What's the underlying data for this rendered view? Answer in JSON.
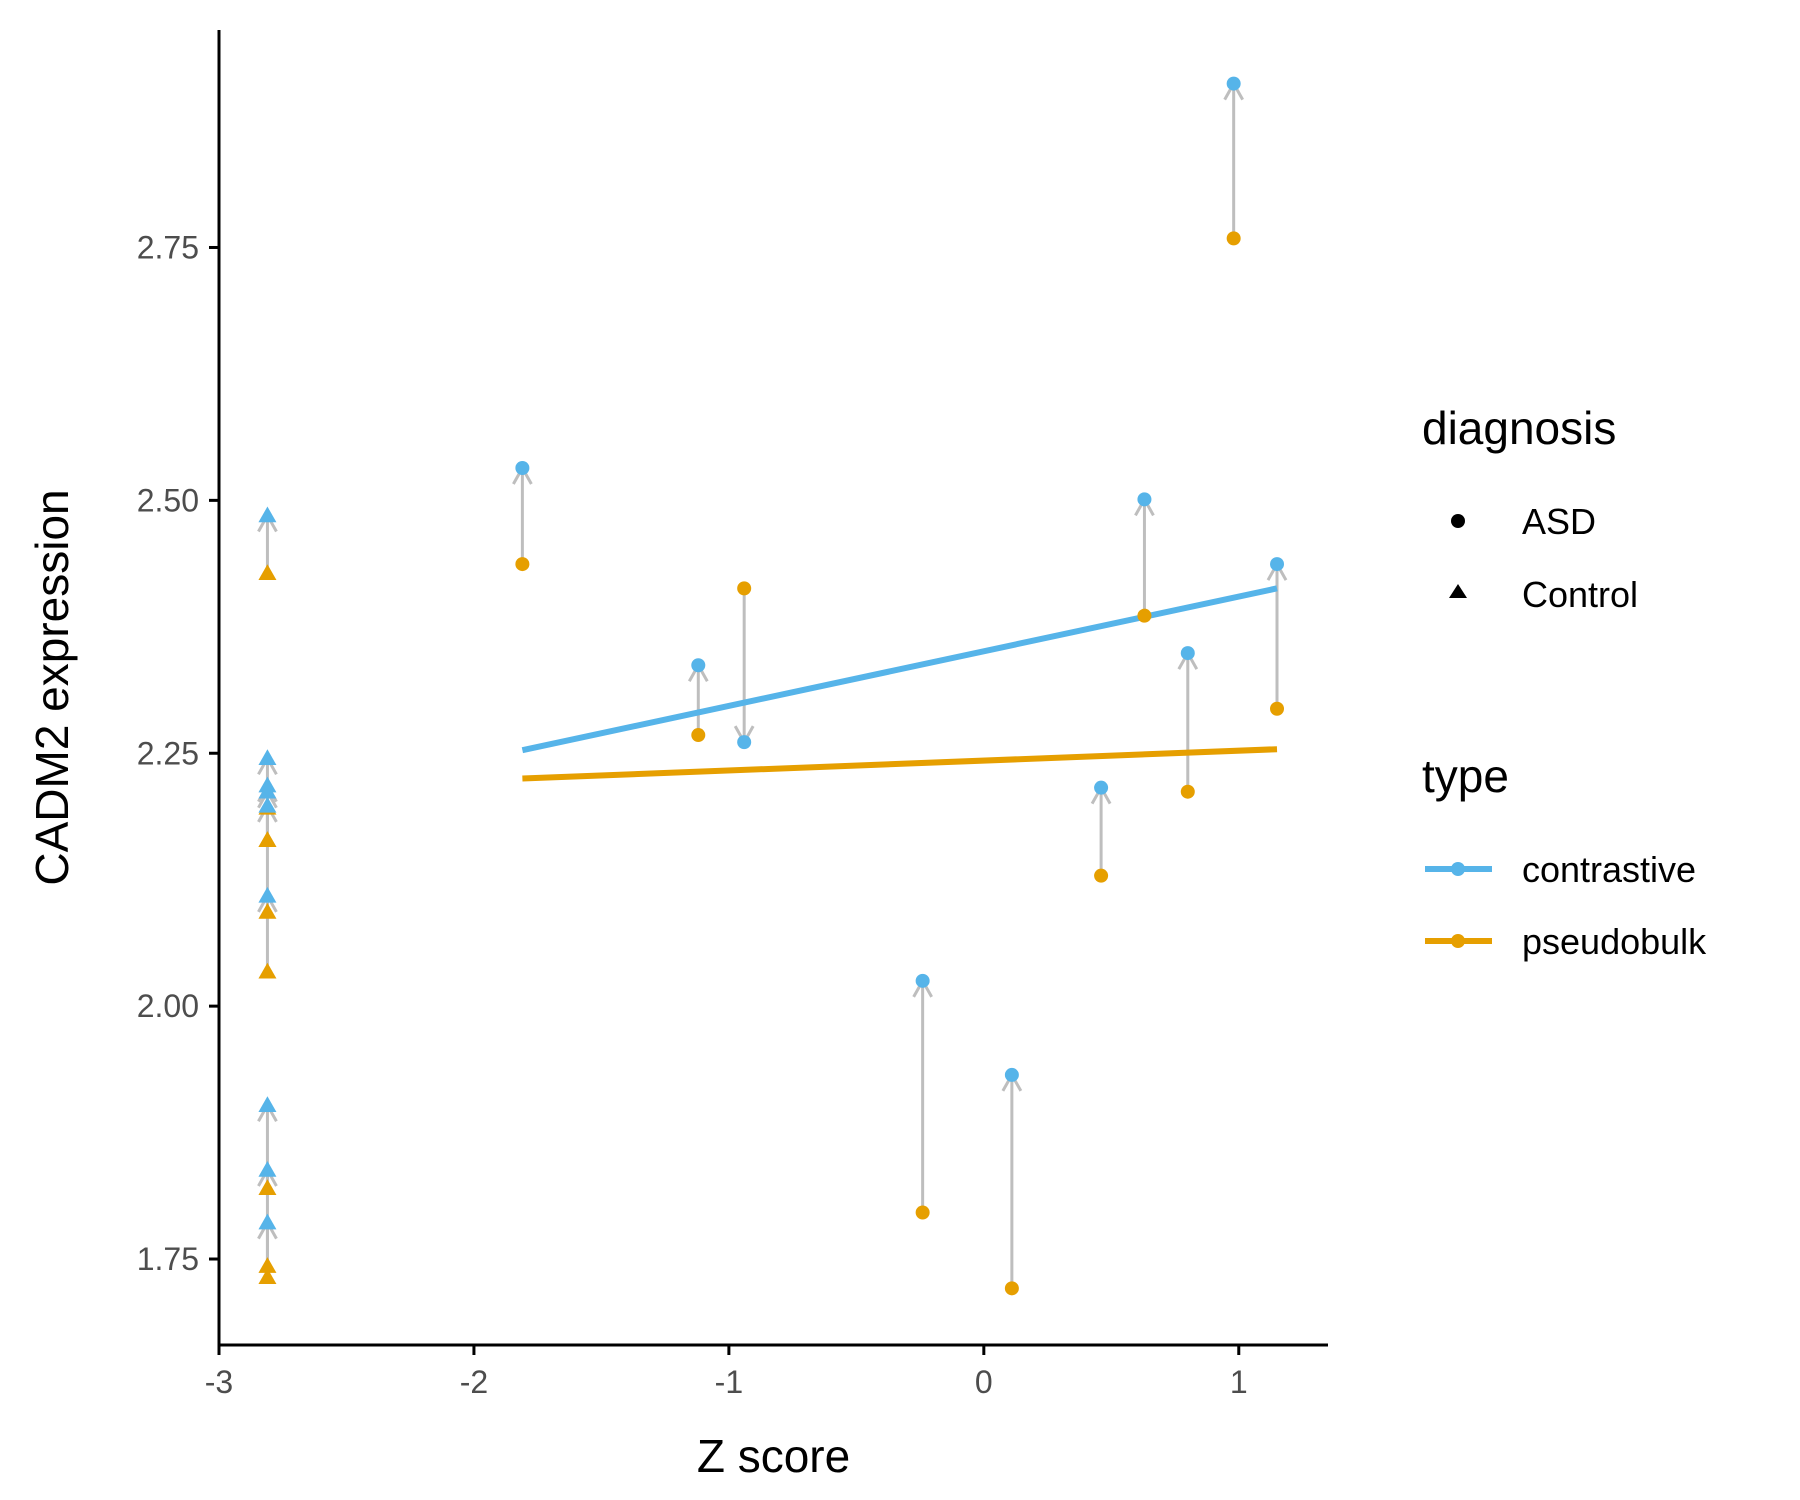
{
  "chart_data": {
    "type": "scatter",
    "xlabel": "Z score",
    "ylabel": "CADM2 expression",
    "xlim": [
      -3.0,
      1.35
    ],
    "ylim": [
      1.665,
      2.965
    ],
    "x_ticks": [
      -3,
      -2,
      -1,
      0,
      1
    ],
    "x_tick_labels": [
      "-3",
      "-2",
      "-1",
      "0",
      "1"
    ],
    "y_ticks": [
      1.75,
      2.0,
      2.25,
      2.5,
      2.75
    ],
    "y_tick_labels": [
      "1.75",
      "2.00",
      "2.25",
      "2.50",
      "2.75"
    ],
    "grid": false,
    "colors": {
      "contrastive": "#56B4E9",
      "pseudobulk": "#E69F00",
      "arrow": "#bebebe"
    },
    "legends": [
      {
        "title": "diagnosis",
        "entries": [
          {
            "label": "ASD",
            "shape": "circle"
          },
          {
            "label": "Control",
            "shape": "triangle"
          }
        ]
      },
      {
        "title": "type",
        "entries": [
          {
            "label": "contrastive",
            "color": "#56B4E9"
          },
          {
            "label": "pseudobulk",
            "color": "#E69F00"
          }
        ]
      }
    ],
    "legend_position": "right",
    "points": [
      {
        "x": -1.81,
        "diagnosis": "ASD",
        "pseudobulk": 2.437,
        "contrastive": 2.532
      },
      {
        "x": -1.12,
        "diagnosis": "ASD",
        "pseudobulk": 2.268,
        "contrastive": 2.337
      },
      {
        "x": -0.94,
        "diagnosis": "ASD",
        "pseudobulk": 2.413,
        "contrastive": 2.261
      },
      {
        "x": -0.24,
        "diagnosis": "ASD",
        "pseudobulk": 1.796,
        "contrastive": 2.025
      },
      {
        "x": 0.11,
        "diagnosis": "ASD",
        "pseudobulk": 1.721,
        "contrastive": 1.932
      },
      {
        "x": 0.46,
        "diagnosis": "ASD",
        "pseudobulk": 2.129,
        "contrastive": 2.216
      },
      {
        "x": 0.63,
        "diagnosis": "ASD",
        "pseudobulk": 2.386,
        "contrastive": 2.501
      },
      {
        "x": 0.8,
        "diagnosis": "ASD",
        "pseudobulk": 2.212,
        "contrastive": 2.349
      },
      {
        "x": 0.98,
        "diagnosis": "ASD",
        "pseudobulk": 2.759,
        "contrastive": 2.912
      },
      {
        "x": 1.15,
        "diagnosis": "ASD",
        "pseudobulk": 2.294,
        "contrastive": 2.437
      },
      {
        "x": -2.81,
        "diagnosis": "Control",
        "pseudobulk": 2.428,
        "contrastive": 2.485
      },
      {
        "x": -2.81,
        "diagnosis": "Control",
        "pseudobulk": 2.196,
        "contrastive": 2.245
      },
      {
        "x": -2.81,
        "diagnosis": "Control",
        "pseudobulk": 2.164,
        "contrastive": 2.212
      },
      {
        "x": -2.81,
        "diagnosis": "Control",
        "pseudobulk": 2.164,
        "contrastive": 2.198
      },
      {
        "x": -2.81,
        "diagnosis": "Control",
        "pseudobulk": 2.093,
        "contrastive": 2.109
      },
      {
        "x": -2.81,
        "diagnosis": "Control",
        "pseudobulk": 2.034,
        "contrastive": 2.218
      },
      {
        "x": -2.81,
        "diagnosis": "Control",
        "pseudobulk": 1.82,
        "contrastive": 1.902
      },
      {
        "x": -2.81,
        "diagnosis": "Control",
        "pseudobulk": 1.743,
        "contrastive": 1.838
      },
      {
        "x": -2.81,
        "diagnosis": "Control",
        "pseudobulk": 1.732,
        "contrastive": 1.786
      }
    ],
    "fit_lines": [
      {
        "type": "contrastive",
        "x": [
          -1.81,
          1.15
        ],
        "y": [
          2.253,
          2.413
        ]
      },
      {
        "type": "pseudobulk",
        "x": [
          -1.81,
          1.15
        ],
        "y": [
          2.225,
          2.254
        ]
      }
    ]
  }
}
